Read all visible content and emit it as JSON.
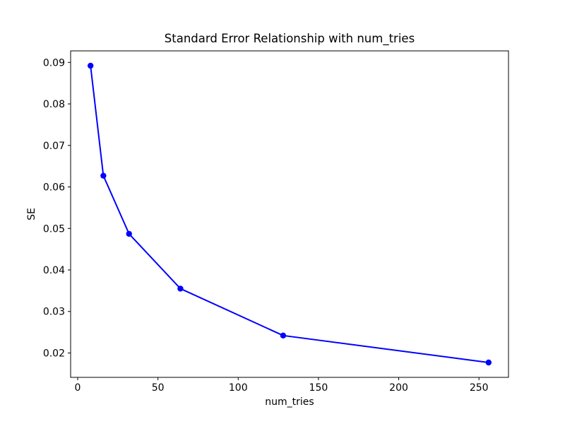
{
  "chart_data": {
    "type": "line",
    "title": "Standard Error Relationship with num_tries",
    "xlabel": "num_tries",
    "ylabel": "SE",
    "x": [
      8,
      16,
      32,
      64,
      128,
      256
    ],
    "y": [
      0.0892,
      0.0627,
      0.0487,
      0.0355,
      0.0242,
      0.0177
    ],
    "line_color": "#0000ff",
    "marker": "circle",
    "marker_radius": 4.2,
    "line_width": 2,
    "xlim": [
      -4.4,
      268.4
    ],
    "ylim": [
      0.014125,
      0.092775
    ],
    "xtick_values": [
      0,
      50,
      100,
      150,
      200,
      250
    ],
    "xtick_labels": [
      "0",
      "50",
      "100",
      "150",
      "200",
      "250"
    ],
    "ytick_values": [
      0.02,
      0.03,
      0.04,
      0.05,
      0.06,
      0.07,
      0.08,
      0.09
    ],
    "ytick_labels": [
      "0.02",
      "0.03",
      "0.04",
      "0.05",
      "0.06",
      "0.07",
      "0.08",
      "0.09"
    ],
    "grid": false,
    "legend_position": "none",
    "background": "#ffffff",
    "spine_color": "#000000"
  }
}
